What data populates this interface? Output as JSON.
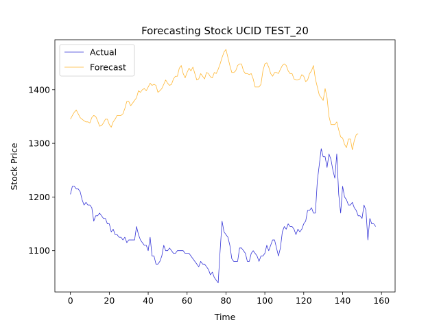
{
  "chart_data": {
    "type": "line",
    "title": "Forecasting Stock UCID TEST_20",
    "xlabel": "Time",
    "ylabel": "Stock Price",
    "xlim": [
      -8,
      167
    ],
    "ylim": [
      1023,
      1493
    ],
    "xticks": [
      0,
      20,
      40,
      60,
      80,
      100,
      120,
      140,
      160
    ],
    "yticks": [
      1100,
      1200,
      1300,
      1400
    ],
    "grid": false,
    "legend_position": "upper-left",
    "series": [
      {
        "name": "Actual",
        "color": "#0000cc",
        "points": [
          [
            0,
            1205
          ],
          [
            1,
            1220
          ],
          [
            2,
            1220
          ],
          [
            3,
            1215
          ],
          [
            4,
            1215
          ],
          [
            5,
            1210
          ],
          [
            6,
            1195
          ],
          [
            7,
            1185
          ],
          [
            8,
            1190
          ],
          [
            9,
            1185
          ],
          [
            10,
            1185
          ],
          [
            11,
            1180
          ],
          [
            12,
            1155
          ],
          [
            13,
            1165
          ],
          [
            14,
            1165
          ],
          [
            15,
            1170
          ],
          [
            16,
            1165
          ],
          [
            17,
            1160
          ],
          [
            18,
            1160
          ],
          [
            19,
            1150
          ],
          [
            20,
            1150
          ],
          [
            21,
            1135
          ],
          [
            22,
            1140
          ],
          [
            23,
            1130
          ],
          [
            24,
            1130
          ],
          [
            25,
            1125
          ],
          [
            26,
            1125
          ],
          [
            27,
            1120
          ],
          [
            28,
            1125
          ],
          [
            29,
            1115
          ],
          [
            30,
            1120
          ],
          [
            31,
            1120
          ],
          [
            32,
            1120
          ],
          [
            33,
            1120
          ],
          [
            34,
            1145
          ],
          [
            35,
            1130
          ],
          [
            36,
            1120
          ],
          [
            37,
            1115
          ],
          [
            38,
            1110
          ],
          [
            39,
            1110
          ],
          [
            40,
            1100
          ],
          [
            41,
            1125
          ],
          [
            42,
            1090
          ],
          [
            43,
            1090
          ],
          [
            44,
            1075
          ],
          [
            45,
            1075
          ],
          [
            46,
            1080
          ],
          [
            47,
            1090
          ],
          [
            48,
            1110
          ],
          [
            49,
            1100
          ],
          [
            50,
            1100
          ],
          [
            51,
            1105
          ],
          [
            52,
            1100
          ],
          [
            53,
            1095
          ],
          [
            54,
            1095
          ],
          [
            55,
            1100
          ],
          [
            56,
            1100
          ],
          [
            57,
            1100
          ],
          [
            58,
            1100
          ],
          [
            59,
            1095
          ],
          [
            60,
            1095
          ],
          [
            61,
            1095
          ],
          [
            62,
            1090
          ],
          [
            63,
            1085
          ],
          [
            64,
            1080
          ],
          [
            65,
            1075
          ],
          [
            66,
            1070
          ],
          [
            67,
            1080
          ],
          [
            68,
            1075
          ],
          [
            69,
            1075
          ],
          [
            70,
            1070
          ],
          [
            71,
            1065
          ],
          [
            72,
            1055
          ],
          [
            73,
            1060
          ],
          [
            74,
            1050
          ],
          [
            75,
            1045
          ],
          [
            76,
            1040
          ],
          [
            77,
            1100
          ],
          [
            78,
            1155
          ],
          [
            79,
            1135
          ],
          [
            80,
            1130
          ],
          [
            81,
            1125
          ],
          [
            82,
            1110
          ],
          [
            83,
            1085
          ],
          [
            84,
            1080
          ],
          [
            85,
            1080
          ],
          [
            86,
            1080
          ],
          [
            87,
            1105
          ],
          [
            88,
            1105
          ],
          [
            89,
            1100
          ],
          [
            90,
            1095
          ],
          [
            91,
            1080
          ],
          [
            92,
            1080
          ],
          [
            93,
            1095
          ],
          [
            94,
            1100
          ],
          [
            95,
            1095
          ],
          [
            96,
            1090
          ],
          [
            97,
            1080
          ],
          [
            98,
            1090
          ],
          [
            99,
            1090
          ],
          [
            100,
            1095
          ],
          [
            101,
            1110
          ],
          [
            102,
            1100
          ],
          [
            103,
            1110
          ],
          [
            104,
            1120
          ],
          [
            105,
            1120
          ],
          [
            106,
            1105
          ],
          [
            107,
            1090
          ],
          [
            108,
            1105
          ],
          [
            109,
            1135
          ],
          [
            110,
            1145
          ],
          [
            111,
            1140
          ],
          [
            112,
            1150
          ],
          [
            113,
            1145
          ],
          [
            114,
            1145
          ],
          [
            115,
            1140
          ],
          [
            116,
            1130
          ],
          [
            117,
            1140
          ],
          [
            118,
            1135
          ],
          [
            119,
            1140
          ],
          [
            120,
            1150
          ],
          [
            121,
            1155
          ],
          [
            122,
            1175
          ],
          [
            123,
            1175
          ],
          [
            124,
            1180
          ],
          [
            125,
            1170
          ],
          [
            126,
            1170
          ],
          [
            127,
            1230
          ],
          [
            128,
            1260
          ],
          [
            129,
            1290
          ],
          [
            130,
            1275
          ],
          [
            131,
            1275
          ],
          [
            132,
            1255
          ],
          [
            133,
            1280
          ],
          [
            134,
            1270
          ],
          [
            135,
            1250
          ],
          [
            136,
            1235
          ],
          [
            137,
            1280
          ],
          [
            138,
            1205
          ],
          [
            139,
            1170
          ],
          [
            140,
            1220
          ],
          [
            141,
            1200
          ],
          [
            142,
            1195
          ],
          [
            143,
            1185
          ],
          [
            144,
            1185
          ],
          [
            145,
            1190
          ],
          [
            146,
            1180
          ],
          [
            147,
            1175
          ],
          [
            148,
            1165
          ],
          [
            149,
            1165
          ],
          [
            150,
            1160
          ],
          [
            151,
            1185
          ],
          [
            152,
            1175
          ],
          [
            153,
            1120
          ],
          [
            154,
            1160
          ],
          [
            155,
            1150
          ],
          [
            156,
            1150
          ],
          [
            157,
            1145
          ]
        ]
      },
      {
        "name": "Forecast",
        "color": "#ffa500",
        "points": [
          [
            0,
            1345
          ],
          [
            1,
            1352
          ],
          [
            2,
            1358
          ],
          [
            3,
            1362
          ],
          [
            4,
            1355
          ],
          [
            5,
            1348
          ],
          [
            6,
            1345
          ],
          [
            7,
            1342
          ],
          [
            8,
            1340
          ],
          [
            9,
            1340
          ],
          [
            10,
            1338
          ],
          [
            11,
            1348
          ],
          [
            12,
            1352
          ],
          [
            13,
            1350
          ],
          [
            14,
            1342
          ],
          [
            15,
            1332
          ],
          [
            16,
            1333
          ],
          [
            17,
            1338
          ],
          [
            18,
            1345
          ],
          [
            19,
            1345
          ],
          [
            20,
            1335
          ],
          [
            21,
            1330
          ],
          [
            22,
            1340
          ],
          [
            23,
            1345
          ],
          [
            24,
            1352
          ],
          [
            25,
            1352
          ],
          [
            26,
            1352
          ],
          [
            27,
            1355
          ],
          [
            28,
            1365
          ],
          [
            29,
            1378
          ],
          [
            30,
            1378
          ],
          [
            31,
            1370
          ],
          [
            32,
            1375
          ],
          [
            33,
            1380
          ],
          [
            34,
            1385
          ],
          [
            35,
            1398
          ],
          [
            36,
            1395
          ],
          [
            37,
            1400
          ],
          [
            38,
            1402
          ],
          [
            39,
            1398
          ],
          [
            40,
            1405
          ],
          [
            41,
            1412
          ],
          [
            42,
            1408
          ],
          [
            43,
            1410
          ],
          [
            44,
            1408
          ],
          [
            45,
            1395
          ],
          [
            46,
            1398
          ],
          [
            47,
            1402
          ],
          [
            48,
            1410
          ],
          [
            49,
            1418
          ],
          [
            50,
            1412
          ],
          [
            51,
            1408
          ],
          [
            52,
            1410
          ],
          [
            53,
            1420
          ],
          [
            54,
            1425
          ],
          [
            55,
            1425
          ],
          [
            56,
            1440
          ],
          [
            57,
            1445
          ],
          [
            58,
            1430
          ],
          [
            59,
            1422
          ],
          [
            60,
            1432
          ],
          [
            61,
            1440
          ],
          [
            62,
            1435
          ],
          [
            63,
            1442
          ],
          [
            64,
            1430
          ],
          [
            65,
            1418
          ],
          [
            66,
            1420
          ],
          [
            67,
            1430
          ],
          [
            68,
            1425
          ],
          [
            69,
            1420
          ],
          [
            70,
            1432
          ],
          [
            71,
            1430
          ],
          [
            72,
            1424
          ],
          [
            73,
            1422
          ],
          [
            74,
            1432
          ],
          [
            75,
            1430
          ],
          [
            76,
            1438
          ],
          [
            77,
            1448
          ],
          [
            78,
            1460
          ],
          [
            79,
            1470
          ],
          [
            80,
            1475
          ],
          [
            81,
            1460
          ],
          [
            82,
            1445
          ],
          [
            83,
            1432
          ],
          [
            84,
            1432
          ],
          [
            85,
            1435
          ],
          [
            86,
            1445
          ],
          [
            87,
            1448
          ],
          [
            88,
            1448
          ],
          [
            89,
            1435
          ],
          [
            90,
            1430
          ],
          [
            91,
            1430
          ],
          [
            92,
            1428
          ],
          [
            93,
            1430
          ],
          [
            94,
            1420
          ],
          [
            95,
            1405
          ],
          [
            96,
            1405
          ],
          [
            97,
            1405
          ],
          [
            98,
            1410
          ],
          [
            99,
            1435
          ],
          [
            100,
            1448
          ],
          [
            101,
            1450
          ],
          [
            102,
            1442
          ],
          [
            103,
            1430
          ],
          [
            104,
            1425
          ],
          [
            105,
            1432
          ],
          [
            106,
            1432
          ],
          [
            107,
            1430
          ],
          [
            108,
            1438
          ],
          [
            109,
            1445
          ],
          [
            110,
            1448
          ],
          [
            111,
            1445
          ],
          [
            112,
            1435
          ],
          [
            113,
            1430
          ],
          [
            114,
            1430
          ],
          [
            115,
            1420
          ],
          [
            116,
            1418
          ],
          [
            117,
            1418
          ],
          [
            118,
            1420
          ],
          [
            119,
            1428
          ],
          [
            120,
            1425
          ],
          [
            121,
            1415
          ],
          [
            122,
            1418
          ],
          [
            123,
            1430
          ],
          [
            124,
            1435
          ],
          [
            125,
            1445
          ],
          [
            126,
            1420
          ],
          [
            127,
            1405
          ],
          [
            128,
            1390
          ],
          [
            129,
            1385
          ],
          [
            130,
            1380
          ],
          [
            131,
            1402
          ],
          [
            132,
            1385
          ],
          [
            133,
            1350
          ],
          [
            134,
            1335
          ],
          [
            135,
            1335
          ],
          [
            136,
            1335
          ],
          [
            137,
            1340
          ],
          [
            138,
            1325
          ],
          [
            139,
            1312
          ],
          [
            140,
            1310
          ],
          [
            141,
            1298
          ],
          [
            142,
            1292
          ],
          [
            143,
            1308
          ],
          [
            144,
            1308
          ],
          [
            145,
            1288
          ],
          [
            146,
            1305
          ],
          [
            147,
            1316
          ],
          [
            148,
            1318
          ]
        ]
      }
    ]
  }
}
